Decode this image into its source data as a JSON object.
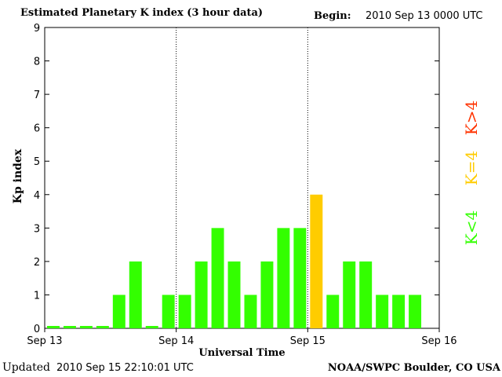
{
  "header": {
    "title": "Estimated Planetary K index (3 hour data)",
    "begin_label": "Begin:",
    "begin_value": "2010 Sep 13 0000 UTC"
  },
  "footer": {
    "updated_label": "Updated",
    "updated_value": "2010 Sep 15 22:10:01 UTC",
    "credit": "NOAA/SWPC Boulder, CO USA"
  },
  "colors": {
    "low": "#33ff00",
    "equal": "#ffcc00",
    "high": "#ff3300"
  },
  "legend": {
    "low": "K<4",
    "equal": "K=4",
    "high": "K>4"
  },
  "chart_data": {
    "type": "bar",
    "xlabel": "Universal Time",
    "ylabel": "Kp index",
    "ylim": [
      0,
      9
    ],
    "yticks": [
      "0",
      "1",
      "2",
      "3",
      "4",
      "5",
      "6",
      "7",
      "8",
      "9"
    ],
    "xtick_labels": [
      "Sep 13",
      "Sep 14",
      "Sep 15",
      "Sep 16"
    ],
    "day_dividers": [
      "Sep 14",
      "Sep 15"
    ],
    "bars_per_day": 8,
    "values": [
      0,
      0,
      0,
      0,
      1,
      2,
      0,
      1,
      1,
      2,
      3,
      2,
      1,
      2,
      3,
      3,
      4,
      1,
      2,
      2,
      1,
      1,
      1
    ]
  }
}
